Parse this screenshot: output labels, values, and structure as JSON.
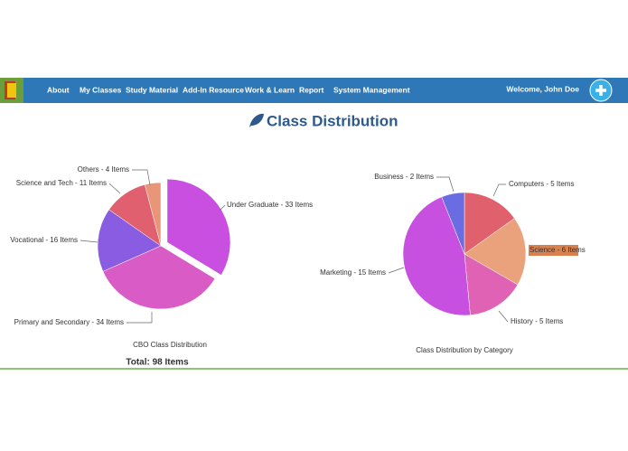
{
  "nav": {
    "items": [
      "About",
      "My Classes",
      "Study Material",
      "Add-In Resource",
      "Work & Learn",
      "Report",
      "System Management"
    ],
    "welcome": "Welcome, John Doe"
  },
  "page_title": "Class Distribution",
  "chart_data": [
    {
      "type": "pie",
      "caption": "CBO Class Distribution",
      "total": "Total: 98 Items",
      "values": [
        33,
        34,
        16,
        11,
        4
      ],
      "value_labels": [
        "Under Graduate - 33 Items",
        "Primary and Secondary - 34 Items",
        "Vocational - 16 Items",
        "Science and Tech - 11 Items",
        "Others - 4 Items"
      ],
      "colors": [
        "#c94fe0",
        "#d95cc6",
        "#8a5ce2",
        "#e0606f",
        "#e99579"
      ]
    },
    {
      "type": "pie",
      "caption": "Class Distribution by Category",
      "values": [
        5,
        6,
        5,
        15,
        2
      ],
      "value_labels": [
        "Computers - 5 Items",
        "Science - 6 Items",
        "History - 5 Items",
        "Marketing - 15 Items",
        "Business - 2 Items"
      ],
      "colors": [
        "#e0606e",
        "#e9a27c",
        "#e062b4",
        "#c850e0",
        "#6a6ce2"
      ]
    }
  ]
}
